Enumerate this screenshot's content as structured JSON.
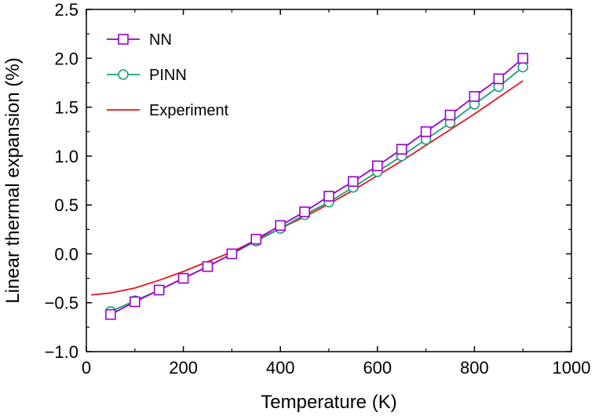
{
  "chart_data": {
    "type": "line",
    "title": "",
    "xlabel": "Temperature (K)",
    "ylabel": "Linear thermal expansion (%)",
    "xlim": [
      0,
      1000
    ],
    "ylim": [
      -1.0,
      2.5
    ],
    "xticks": [
      0,
      200,
      400,
      600,
      800,
      1000
    ],
    "yticks": [
      -1.0,
      -0.5,
      0.0,
      0.5,
      1.0,
      1.5,
      2.0,
      2.5
    ],
    "xtick_labels": [
      "0",
      "200",
      "400",
      "600",
      "800",
      "1000"
    ],
    "ytick_labels": [
      "−1.0",
      "−0.5",
      "0.0",
      "0.5",
      "1.0",
      "1.5",
      "2.0",
      "2.5"
    ],
    "grid": false,
    "legend_position": "top-left",
    "series": [
      {
        "name": "NN",
        "color": "#9900cc",
        "marker": "square",
        "x": [
          50,
          100,
          150,
          200,
          250,
          300,
          350,
          400,
          450,
          500,
          550,
          600,
          650,
          700,
          750,
          800,
          850,
          900
        ],
        "values": [
          -0.62,
          -0.49,
          -0.37,
          -0.25,
          -0.13,
          0.0,
          0.15,
          0.29,
          0.43,
          0.59,
          0.74,
          0.9,
          1.07,
          1.25,
          1.42,
          1.61,
          1.79,
          2.0
        ]
      },
      {
        "name": "PINN",
        "color": "#1a9e77",
        "marker": "circle",
        "x": [
          50,
          100,
          150,
          200,
          250,
          300,
          350,
          400,
          450,
          500,
          550,
          600,
          650,
          700,
          750,
          800,
          850,
          900
        ],
        "values": [
          -0.59,
          -0.48,
          -0.37,
          -0.25,
          -0.13,
          0.0,
          0.13,
          0.26,
          0.4,
          0.53,
          0.68,
          0.84,
          1.0,
          1.17,
          1.34,
          1.53,
          1.71,
          1.91
        ]
      },
      {
        "name": "Experiment",
        "color": "#e8141b",
        "marker": "none",
        "x": [
          10,
          50,
          100,
          150,
          200,
          250,
          300,
          350,
          400,
          450,
          500,
          550,
          600,
          650,
          700,
          750,
          800,
          850,
          900
        ],
        "values": [
          -0.42,
          -0.4,
          -0.35,
          -0.27,
          -0.18,
          -0.08,
          0.02,
          0.14,
          0.26,
          0.38,
          0.51,
          0.65,
          0.8,
          0.95,
          1.11,
          1.27,
          1.43,
          1.6,
          1.77
        ]
      }
    ]
  }
}
